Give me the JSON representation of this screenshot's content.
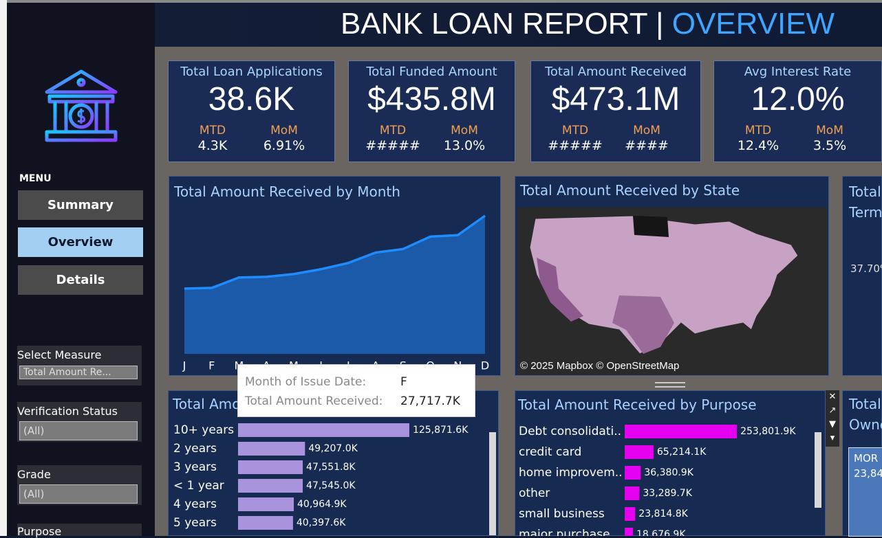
{
  "header": {
    "title": "BANK LOAN REPORT | ",
    "title_highlight": "OVERVIEW"
  },
  "sidebar": {
    "menu_label": "MENU",
    "buttons": [
      "Summary",
      "Overview",
      "Details"
    ],
    "filters": [
      {
        "label": "Select Measure",
        "value": "Total Amount Re..."
      },
      {
        "label": "Verification Status",
        "value": "(All)"
      },
      {
        "label": "Grade",
        "value": "(All)"
      },
      {
        "label": "Purpose"
      }
    ]
  },
  "kpis": [
    {
      "title": "Total Loan Applications",
      "value": "38.6K",
      "mtd_label": "MTD",
      "mtd_value": "4.3K",
      "mom_label": "MoM",
      "mom_value": "6.91%"
    },
    {
      "title": "Total Funded Amount",
      "value": "$435.8M",
      "mtd_label": "MTD",
      "mtd_value": "#####",
      "mom_label": "MoM",
      "mom_value": "13.0%"
    },
    {
      "title": "Total Amount Received",
      "value": "$473.1M",
      "mtd_label": "MTD",
      "mtd_value": "#####",
      "mom_label": "MoM",
      "mom_value": "####"
    },
    {
      "title": "Avg Interest Rate",
      "value": "12.0%",
      "mtd_label": "MTD",
      "mtd_value": "12.4%",
      "mom_label": "MoM",
      "mom_value": "3.5%"
    }
  ],
  "month_chart": {
    "type": "area",
    "title": "Total Amount Received by Month",
    "categories": [
      "J",
      "F",
      "M",
      "A",
      "M",
      "J",
      "J",
      "A",
      "S",
      "O",
      "N",
      "D"
    ],
    "values": [
      27430,
      27717.7,
      32100,
      32390,
      33560,
      35600,
      38230,
      42600,
      44060,
      49310,
      49900,
      58070
    ],
    "color": "#1e8cff",
    "ylim": [
      0,
      65000
    ],
    "tooltip": {
      "label1": "Month of Issue Date:",
      "value1": "F",
      "label2": "Total Amount Received:",
      "value2": "27,717.7K"
    }
  },
  "state_map": {
    "title": "Total Amount Received by State",
    "attribution": "© 2025 Mapbox © OpenStreetMap"
  },
  "emp_chart": {
    "type": "bar",
    "orientation": "horizontal",
    "title": "Total Amo",
    "color": "#a993dd",
    "xlim": [
      0,
      180000
    ],
    "categories": [
      "10+ years",
      "2 years",
      "3 years",
      "< 1 year",
      "4 years",
      "5 years"
    ],
    "values": [
      125871.6,
      49207.0,
      47551.8,
      47545.0,
      40964.9,
      40397.6
    ],
    "value_labels": [
      "125,871.6K",
      "49,207.0K",
      "47,551.8K",
      "47,545.0K",
      "40,964.9K",
      "40,397.6K"
    ]
  },
  "purpose_chart": {
    "type": "bar",
    "orientation": "horizontal",
    "title": "Total Amount Received by Purpose",
    "color": "#e600f0",
    "xlim": [
      0,
      400000
    ],
    "categories": [
      "Debt consolidati..",
      "credit card",
      "home improvem..",
      "other",
      "small business",
      "major purchase"
    ],
    "values": [
      253801.9,
      65214.1,
      36380.9,
      33289.7,
      23814.8,
      18676.9
    ],
    "value_labels": [
      "253,801.9K",
      "65,214.1K",
      "36,380.9K",
      "33,289.7K",
      "23,814.8K",
      "18,676.9K"
    ]
  },
  "cut_panels": [
    {
      "title_lines": [
        "Total",
        "Term"
      ],
      "texts": [
        "37.70%"
      ]
    },
    {
      "title_lines": [
        "Total",
        "Owne"
      ],
      "texts": [
        "MOR",
        "23,84"
      ]
    }
  ]
}
